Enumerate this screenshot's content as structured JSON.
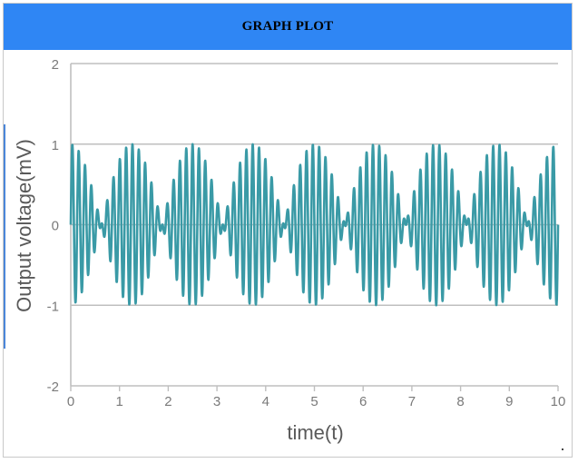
{
  "header": {
    "title": "GRAPH PLOT"
  },
  "colors": {
    "header_bg": "#2f86f4",
    "line": "#3a9aa6",
    "grid": "#bfbfbf",
    "axis_text": "#7a7a7a",
    "label_text": "#595959"
  },
  "chart_data": {
    "type": "line",
    "title": "",
    "xlabel": "time(t)",
    "ylabel": "Output voltage(mV)",
    "xlim": [
      0,
      10
    ],
    "ylim": [
      -2,
      2
    ],
    "x_ticks": [
      "0",
      "1",
      "2",
      "3",
      "4",
      "5",
      "6",
      "7",
      "8",
      "9",
      "10"
    ],
    "y_ticks": [
      "2",
      "1",
      "0",
      "-1",
      "-2"
    ],
    "grid": "horizontal",
    "series": [
      {
        "formula": "0.5*sin(2*pi*8.1*t) + 0.5*sin(2*pi*7.3*t)",
        "x_start": 0,
        "x_end": 10,
        "samples": 2000
      }
    ]
  }
}
